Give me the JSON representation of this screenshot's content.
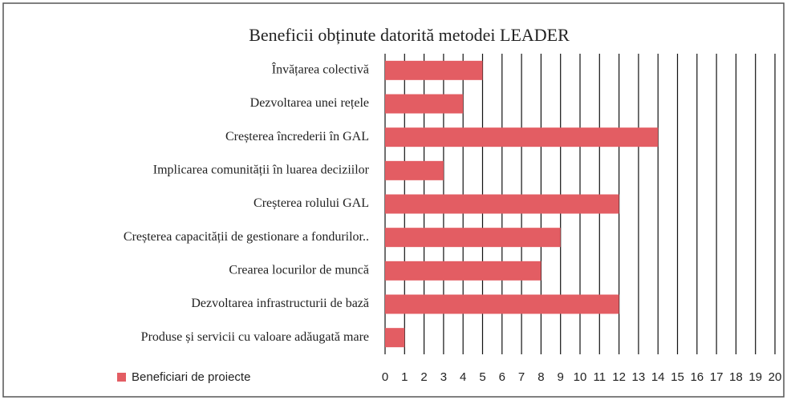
{
  "chart_data": {
    "type": "bar",
    "orientation": "horizontal",
    "title": "Beneficii obținute datorită metodei LEADER",
    "categories": [
      "Învățarea colectivă",
      "Dezvoltarea unei rețele",
      "Creșterea încrederii în GAL",
      "Implicarea comunității în luarea deciziilor",
      "Creșterea rolului GAL",
      "Creșterea capacității de gestionare a fondurilor..",
      "Crearea locurilor de muncă",
      "Dezvoltarea infrastructurii de bază",
      "Produse și servicii cu valoare adăugată mare"
    ],
    "series": [
      {
        "name": "Beneficiari de proiecte",
        "color": "#e35d63",
        "values": [
          5,
          4,
          14,
          3,
          12,
          9,
          8,
          12,
          1
        ]
      }
    ],
    "xlim": [
      0,
      20
    ],
    "xticks": [
      0,
      1,
      2,
      3,
      4,
      5,
      6,
      7,
      8,
      9,
      10,
      11,
      12,
      13,
      14,
      15,
      16,
      17,
      18,
      19,
      20
    ],
    "grid": true,
    "legend": "bottom-left"
  }
}
